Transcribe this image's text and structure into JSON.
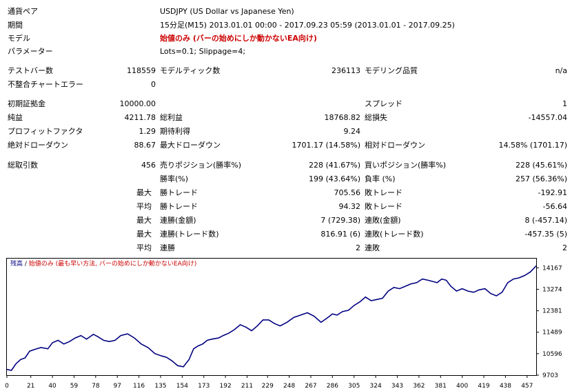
{
  "header": {
    "symbol_label": "通貨ペア",
    "symbol_value": "USDJPY (US Dollar vs Japanese Yen)",
    "period_label": "期間",
    "period_value": "15分足(M15) 2013.01.01 00:00 - 2017.09.23 05:59 (2013.01.01 - 2017.09.25)",
    "model_label": "モデル",
    "model_value": "始値のみ (バーの始めにしか動かないEA向け)",
    "params_label": "パラメーター",
    "params_value": "Lots=0.1; Slippage=4;"
  },
  "stats": {
    "bars_label": "テストバー数",
    "bars_value": "118559",
    "ticks_label": "モデルティック数",
    "ticks_value": "236113",
    "quality_label": "モデリング品質",
    "quality_value": "n/a",
    "mismatch_label": "不整合チャートエラー",
    "mismatch_value": "0",
    "deposit_label": "初期証拠金",
    "deposit_value": "10000.00",
    "spread_label": "スプレッド",
    "spread_value": "1",
    "net_label": "純益",
    "net_value": "4211.78",
    "gross_profit_label": "総利益",
    "gross_profit_value": "18768.82",
    "gross_loss_label": "総損失",
    "gross_loss_value": "-14557.04",
    "pf_label": "プロフィットファクタ",
    "pf_value": "1.29",
    "expected_label": "期待利得",
    "expected_value": "9.24",
    "abs_dd_label": "絶対ドローダウン",
    "abs_dd_value": "88.67",
    "max_dd_label": "最大ドローダウン",
    "max_dd_value": "1701.17 (14.58%)",
    "rel_dd_label": "相対ドローダウン",
    "rel_dd_value": "14.58% (1701.17)",
    "trades_label": "総取引数",
    "trades_value": "456",
    "short_label": "売りポジション(勝率%)",
    "short_value": "228 (41.67%)",
    "long_label": "買いポジション(勝率%)",
    "long_value": "228 (45.61%)",
    "profit_trades_label": "勝率(%)",
    "profit_trades_value": "199 (43.64%)",
    "loss_trades_label": "負率 (%)",
    "loss_trades_value": "257 (56.36%)",
    "largest_label": "最大",
    "largest_profit_label": "勝トレード",
    "largest_profit_value": "705.56",
    "largest_loss_label": "敗トレード",
    "largest_loss_value": "-192.91",
    "average_label": "平均",
    "average_profit_label": "勝トレード",
    "average_profit_value": "94.32",
    "average_loss_label": "敗トレード",
    "average_loss_value": "-56.64",
    "max_label1": "最大",
    "consec_wins_label": "連勝(金額)",
    "consec_wins_value": "7 (729.38)",
    "consec_losses_label": "連敗(金額)",
    "consec_losses_value": "8 (-457.14)",
    "max_label2": "最大",
    "consec_profit_label": "連勝(トレード数)",
    "consec_profit_value": "816.91 (6)",
    "consec_loss_label": "連敗(トレード数)",
    "consec_loss_value": "-457.35 (5)",
    "avg_label2": "平均",
    "avg_wins_label": "連勝",
    "avg_wins_value": "2",
    "avg_losses_label": "連敗",
    "avg_losses_value": "2"
  },
  "chart": {
    "legend_label": "残高",
    "legend_sep": " / ",
    "legend_model": "始値のみ (最も早い方法, バーの始めにしか動かないEA向け)",
    "line_color": "#000080"
  },
  "chart_data": {
    "type": "line",
    "title": "",
    "xlabel": "",
    "ylabel": "",
    "y_ticks": [
      "14167",
      "13274",
      "12381",
      "11489",
      "10596",
      "9703"
    ],
    "x_ticks": [
      "0",
      "21",
      "40",
      "59",
      "78",
      "97",
      "116",
      "135",
      "154",
      "173",
      "192",
      "211",
      "229",
      "248",
      "267",
      "286",
      "305",
      "324",
      "343",
      "362",
      "381",
      "400",
      "419",
      "438",
      "457"
    ],
    "xlim": [
      0,
      465
    ],
    "ylim": [
      9703,
      14550
    ],
    "series": [
      {
        "x": [
          0,
          4,
          8,
          12,
          16,
          20,
          25,
          30,
          36,
          40,
          45,
          50,
          55,
          60,
          65,
          70,
          76,
          80,
          85,
          90,
          95,
          100,
          106,
          112,
          118,
          124,
          130,
          136,
          140,
          145,
          150,
          155,
          160,
          164,
          168,
          172,
          176,
          180,
          186,
          190,
          195,
          200,
          205,
          210,
          215,
          220,
          225,
          230,
          235,
          240,
          246,
          252,
          258,
          264,
          270,
          276,
          282,
          286,
          290,
          295,
          300,
          305,
          310,
          315,
          320,
          325,
          330,
          335,
          340,
          345,
          350,
          355,
          360,
          365,
          370,
          374,
          378,
          382,
          386,
          390,
          395,
          400,
          405,
          410,
          415,
          420,
          425,
          430,
          435,
          440,
          445,
          450,
          455,
          460,
          465
        ],
        "y": [
          9940,
          9900,
          10180,
          10350,
          10420,
          10700,
          10780,
          10850,
          10800,
          11050,
          11150,
          11000,
          11100,
          11250,
          11350,
          11200,
          11400,
          11300,
          11150,
          11100,
          11150,
          11350,
          11420,
          11250,
          11000,
          10850,
          10600,
          10500,
          10450,
          10300,
          10100,
          10050,
          10350,
          10800,
          10920,
          11000,
          11150,
          11200,
          11250,
          11350,
          11450,
          11600,
          11800,
          11700,
          11550,
          11750,
          12000,
          12000,
          11850,
          11750,
          11900,
          12100,
          12200,
          12300,
          12150,
          11900,
          12100,
          12250,
          12200,
          12350,
          12400,
          12600,
          12750,
          12950,
          12800,
          12850,
          12900,
          13200,
          13350,
          13300,
          13400,
          13500,
          13550,
          13700,
          13650,
          13600,
          13550,
          13700,
          13650,
          13400,
          13200,
          13300,
          13200,
          13150,
          13250,
          13300,
          13100,
          13000,
          13150,
          13550,
          13700,
          13750,
          13850,
          14000,
          14250
        ]
      }
    ]
  }
}
